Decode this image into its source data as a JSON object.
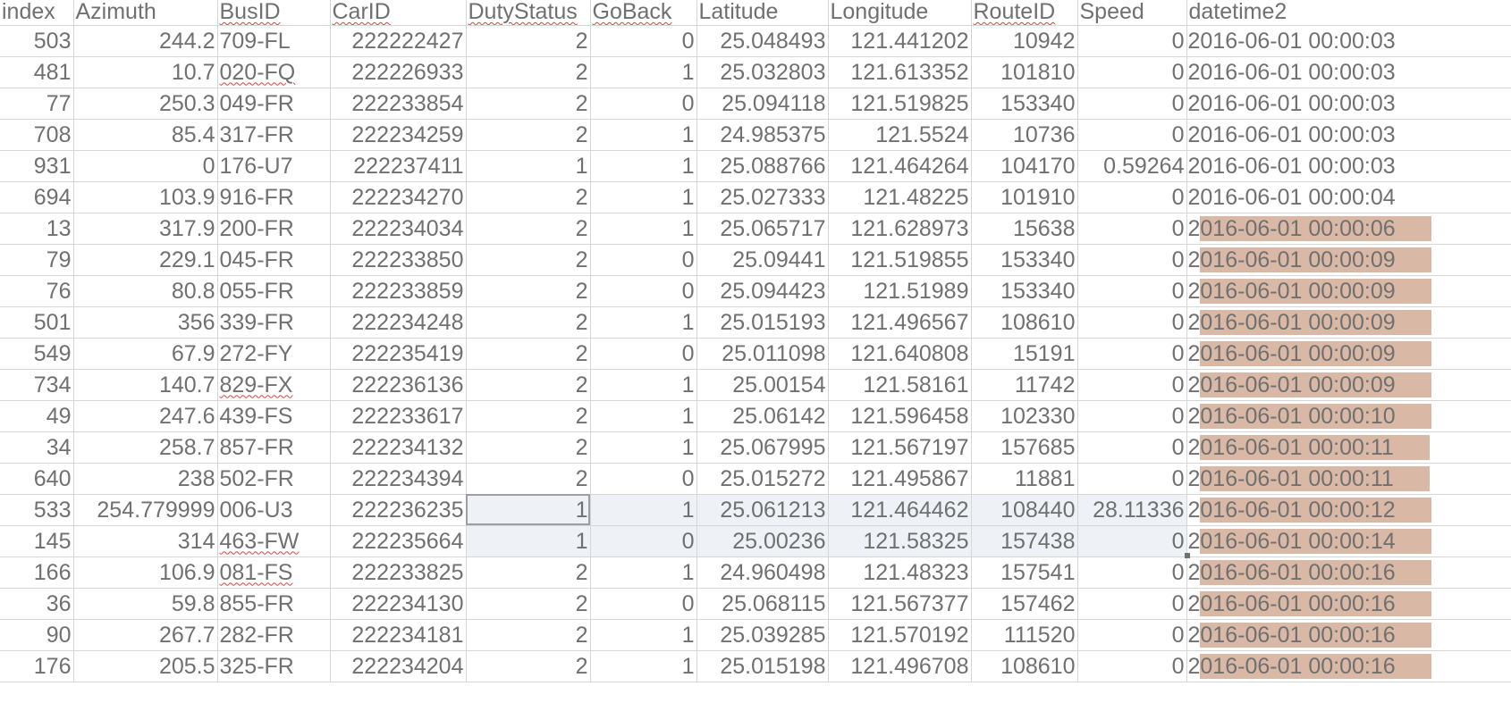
{
  "columns": [
    {
      "key": "index",
      "label": "index",
      "spell": false
    },
    {
      "key": "azimuth",
      "label": "Azimuth",
      "spell": false
    },
    {
      "key": "busid",
      "label": "BusID",
      "spell": true
    },
    {
      "key": "carid",
      "label": "CarID",
      "spell": true
    },
    {
      "key": "duty",
      "label": "DutyStatus",
      "spell": true
    },
    {
      "key": "goback",
      "label": "GoBack",
      "spell": true
    },
    {
      "key": "lat",
      "label": "Latitude",
      "spell": false
    },
    {
      "key": "lon",
      "label": "Longitude",
      "spell": false
    },
    {
      "key": "route",
      "label": "RouteID",
      "spell": true
    },
    {
      "key": "speed",
      "label": "Speed",
      "spell": false
    },
    {
      "key": "dt",
      "label": "datetime2",
      "spell": false
    }
  ],
  "rows": [
    {
      "index": "503",
      "azimuth": "244.2",
      "busid": "709-FL",
      "carid": "222222427",
      "duty": "2",
      "goback": "0",
      "lat": "25.048493",
      "lon": "121.441202",
      "route": "10942",
      "speed": "0",
      "dt": "2016-06-01 00:00:03",
      "hl": false
    },
    {
      "index": "481",
      "azimuth": "10.7",
      "busid": "020-FQ",
      "carid": "222226933",
      "duty": "2",
      "goback": "1",
      "lat": "25.032803",
      "lon": "121.613352",
      "route": "101810",
      "speed": "0",
      "dt": "2016-06-01 00:00:03",
      "hl": false,
      "busSpell": true
    },
    {
      "index": "77",
      "azimuth": "250.3",
      "busid": "049-FR",
      "carid": "222233854",
      "duty": "2",
      "goback": "0",
      "lat": "25.094118",
      "lon": "121.519825",
      "route": "153340",
      "speed": "0",
      "dt": "2016-06-01 00:00:03",
      "hl": false
    },
    {
      "index": "708",
      "azimuth": "85.4",
      "busid": "317-FR",
      "carid": "222234259",
      "duty": "2",
      "goback": "1",
      "lat": "24.985375",
      "lon": "121.5524",
      "route": "10736",
      "speed": "0",
      "dt": "2016-06-01 00:00:03",
      "hl": false
    },
    {
      "index": "931",
      "azimuth": "0",
      "busid": "176-U7",
      "carid": "222237411",
      "duty": "1",
      "goback": "1",
      "lat": "25.088766",
      "lon": "121.464264",
      "route": "104170",
      "speed": "0.59264",
      "dt": "2016-06-01 00:00:03",
      "hl": false
    },
    {
      "index": "694",
      "azimuth": "103.9",
      "busid": "916-FR",
      "carid": "222234270",
      "duty": "2",
      "goback": "1",
      "lat": "25.027333",
      "lon": "121.48225",
      "route": "101910",
      "speed": "0",
      "dt": "2016-06-01 00:00:04",
      "hl": false
    },
    {
      "index": "13",
      "azimuth": "317.9",
      "busid": "200-FR",
      "carid": "222234034",
      "duty": "2",
      "goback": "1",
      "lat": "25.065717",
      "lon": "121.628973",
      "route": "15638",
      "speed": "0",
      "dt": "2016-06-01 00:00:06",
      "hl": true
    },
    {
      "index": "79",
      "azimuth": "229.1",
      "busid": "045-FR",
      "carid": "222233850",
      "duty": "2",
      "goback": "0",
      "lat": "25.09441",
      "lon": "121.519855",
      "route": "153340",
      "speed": "0",
      "dt": "2016-06-01 00:00:09",
      "hl": true
    },
    {
      "index": "76",
      "azimuth": "80.8",
      "busid": "055-FR",
      "carid": "222233859",
      "duty": "2",
      "goback": "0",
      "lat": "25.094423",
      "lon": "121.51989",
      "route": "153340",
      "speed": "0",
      "dt": "2016-06-01 00:00:09",
      "hl": true
    },
    {
      "index": "501",
      "azimuth": "356",
      "busid": "339-FR",
      "carid": "222234248",
      "duty": "2",
      "goback": "1",
      "lat": "25.015193",
      "lon": "121.496567",
      "route": "108610",
      "speed": "0",
      "dt": "2016-06-01 00:00:09",
      "hl": true
    },
    {
      "index": "549",
      "azimuth": "67.9",
      "busid": "272-FY",
      "carid": "222235419",
      "duty": "2",
      "goback": "0",
      "lat": "25.011098",
      "lon": "121.640808",
      "route": "15191",
      "speed": "0",
      "dt": "2016-06-01 00:00:09",
      "hl": true
    },
    {
      "index": "734",
      "azimuth": "140.7",
      "busid": "829-FX",
      "carid": "222236136",
      "duty": "2",
      "goback": "1",
      "lat": "25.00154",
      "lon": "121.58161",
      "route": "11742",
      "speed": "0",
      "dt": "2016-06-01 00:00:09",
      "hl": true,
      "busSpell": true
    },
    {
      "index": "49",
      "azimuth": "247.6",
      "busid": "439-FS",
      "carid": "222233617",
      "duty": "2",
      "goback": "1",
      "lat": "25.06142",
      "lon": "121.596458",
      "route": "102330",
      "speed": "0",
      "dt": "2016-06-01 00:00:10",
      "hl": true
    },
    {
      "index": "34",
      "azimuth": "258.7",
      "busid": "857-FR",
      "carid": "222234132",
      "duty": "2",
      "goback": "1",
      "lat": "25.067995",
      "lon": "121.567197",
      "route": "157685",
      "speed": "0",
      "dt": "2016-06-01 00:00:11",
      "hl": true
    },
    {
      "index": "640",
      "azimuth": "238",
      "busid": "502-FR",
      "carid": "222234394",
      "duty": "2",
      "goback": "0",
      "lat": "25.015272",
      "lon": "121.495867",
      "route": "11881",
      "speed": "0",
      "dt": "2016-06-01 00:00:11",
      "hl": true
    },
    {
      "index": "533",
      "azimuth": "254.779999",
      "busid": "006-U3",
      "carid": "222236235",
      "duty": "1",
      "goback": "1",
      "lat": "25.061213",
      "lon": "121.464462",
      "route": "108440",
      "speed": "28.11336",
      "dt": "2016-06-01 00:00:12",
      "hl": true,
      "selected": true,
      "cursor": true
    },
    {
      "index": "145",
      "azimuth": "314",
      "busid": "463-FW",
      "carid": "222235664",
      "duty": "1",
      "goback": "0",
      "lat": "25.00236",
      "lon": "121.58325",
      "route": "157438",
      "speed": "0",
      "dt": "2016-06-01 00:00:14",
      "hl": true,
      "selected": true,
      "busSpell": true
    },
    {
      "index": "166",
      "azimuth": "106.9",
      "busid": "081-FS",
      "carid": "222233825",
      "duty": "2",
      "goback": "1",
      "lat": "24.960498",
      "lon": "121.48323",
      "route": "157541",
      "speed": "0",
      "dt": "2016-06-01 00:00:16",
      "hl": true,
      "busSpell": true
    },
    {
      "index": "36",
      "azimuth": "59.8",
      "busid": "855-FR",
      "carid": "222234130",
      "duty": "2",
      "goback": "0",
      "lat": "25.068115",
      "lon": "121.567377",
      "route": "157462",
      "speed": "0",
      "dt": "2016-06-01 00:00:16",
      "hl": true
    },
    {
      "index": "90",
      "azimuth": "267.7",
      "busid": "282-FR",
      "carid": "222234181",
      "duty": "2",
      "goback": "1",
      "lat": "25.039285",
      "lon": "121.570192",
      "route": "111520",
      "speed": "0",
      "dt": "2016-06-01 00:00:16",
      "hl": true
    },
    {
      "index": "176",
      "azimuth": "205.5",
      "busid": "325-FR",
      "carid": "222234204",
      "duty": "2",
      "goback": "1",
      "lat": "25.015198",
      "lon": "121.496708",
      "route": "108610",
      "speed": "0",
      "dt": "2016-06-01 00:00:16",
      "hl": true
    }
  ],
  "colors": {
    "grid": "#d6d6d6",
    "text": "#707070",
    "highlight": "#d9b9a6",
    "selection": "#eef1f5",
    "spellcheck": "#e04040"
  }
}
